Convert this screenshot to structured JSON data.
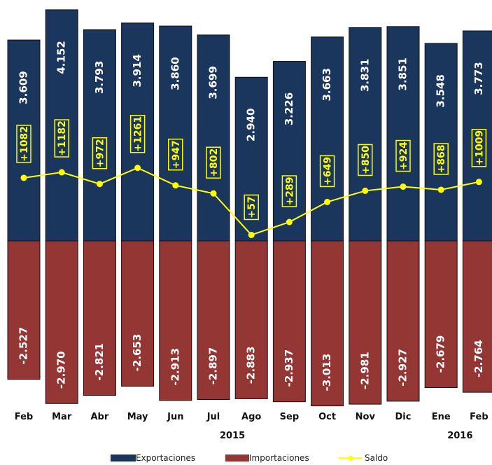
{
  "chart_data": {
    "type": "bar",
    "categories": [
      "Feb",
      "Mar",
      "Abr",
      "May",
      "Jun",
      "Jul",
      "Ago",
      "Sep",
      "Oct",
      "Nov",
      "Dic",
      "Ene",
      "Feb"
    ],
    "year_labels": [
      {
        "text": "2015",
        "category_index": 5.5
      },
      {
        "text": "2016",
        "category_index": 11.5
      }
    ],
    "series": [
      {
        "name": "Exportaciones",
        "color": "#1b365d",
        "values": [
          3609,
          4152,
          3793,
          3914,
          3860,
          3699,
          2940,
          3226,
          3663,
          3831,
          3851,
          3548,
          3773
        ],
        "labels": [
          "3.609",
          "4.152",
          "3.793",
          "3.914",
          "3.860",
          "3.699",
          "2.940",
          "3.226",
          "3.663",
          "3.831",
          "3.851",
          "3.548",
          "3.773"
        ]
      },
      {
        "name": "Importaciones",
        "color": "#943634",
        "values": [
          -2527,
          -2970,
          -2821,
          -2653,
          -2913,
          -2897,
          -2883,
          -2937,
          -3013,
          -2981,
          -2927,
          -2679,
          -2764
        ],
        "labels": [
          "-2.527",
          "-2.970",
          "-2.821",
          "-2.653",
          "-2.913",
          "-2.897",
          "-2.883",
          "-2.937",
          "-3.013",
          "-2.981",
          "-2.927",
          "-2.679",
          "-2.764"
        ]
      },
      {
        "name": "Saldo",
        "color": "#ffff00",
        "type": "line",
        "values": [
          1082,
          1182,
          972,
          1261,
          947,
          802,
          57,
          289,
          649,
          850,
          924,
          868,
          1009
        ],
        "labels": [
          "+1082",
          "+1182",
          "+972",
          "+1261",
          "+947",
          "+802",
          "+57",
          "+289",
          "+649",
          "+850",
          "+924",
          "+868",
          "+1009"
        ]
      }
    ],
    "legend_position": "bottom",
    "grid": false
  }
}
